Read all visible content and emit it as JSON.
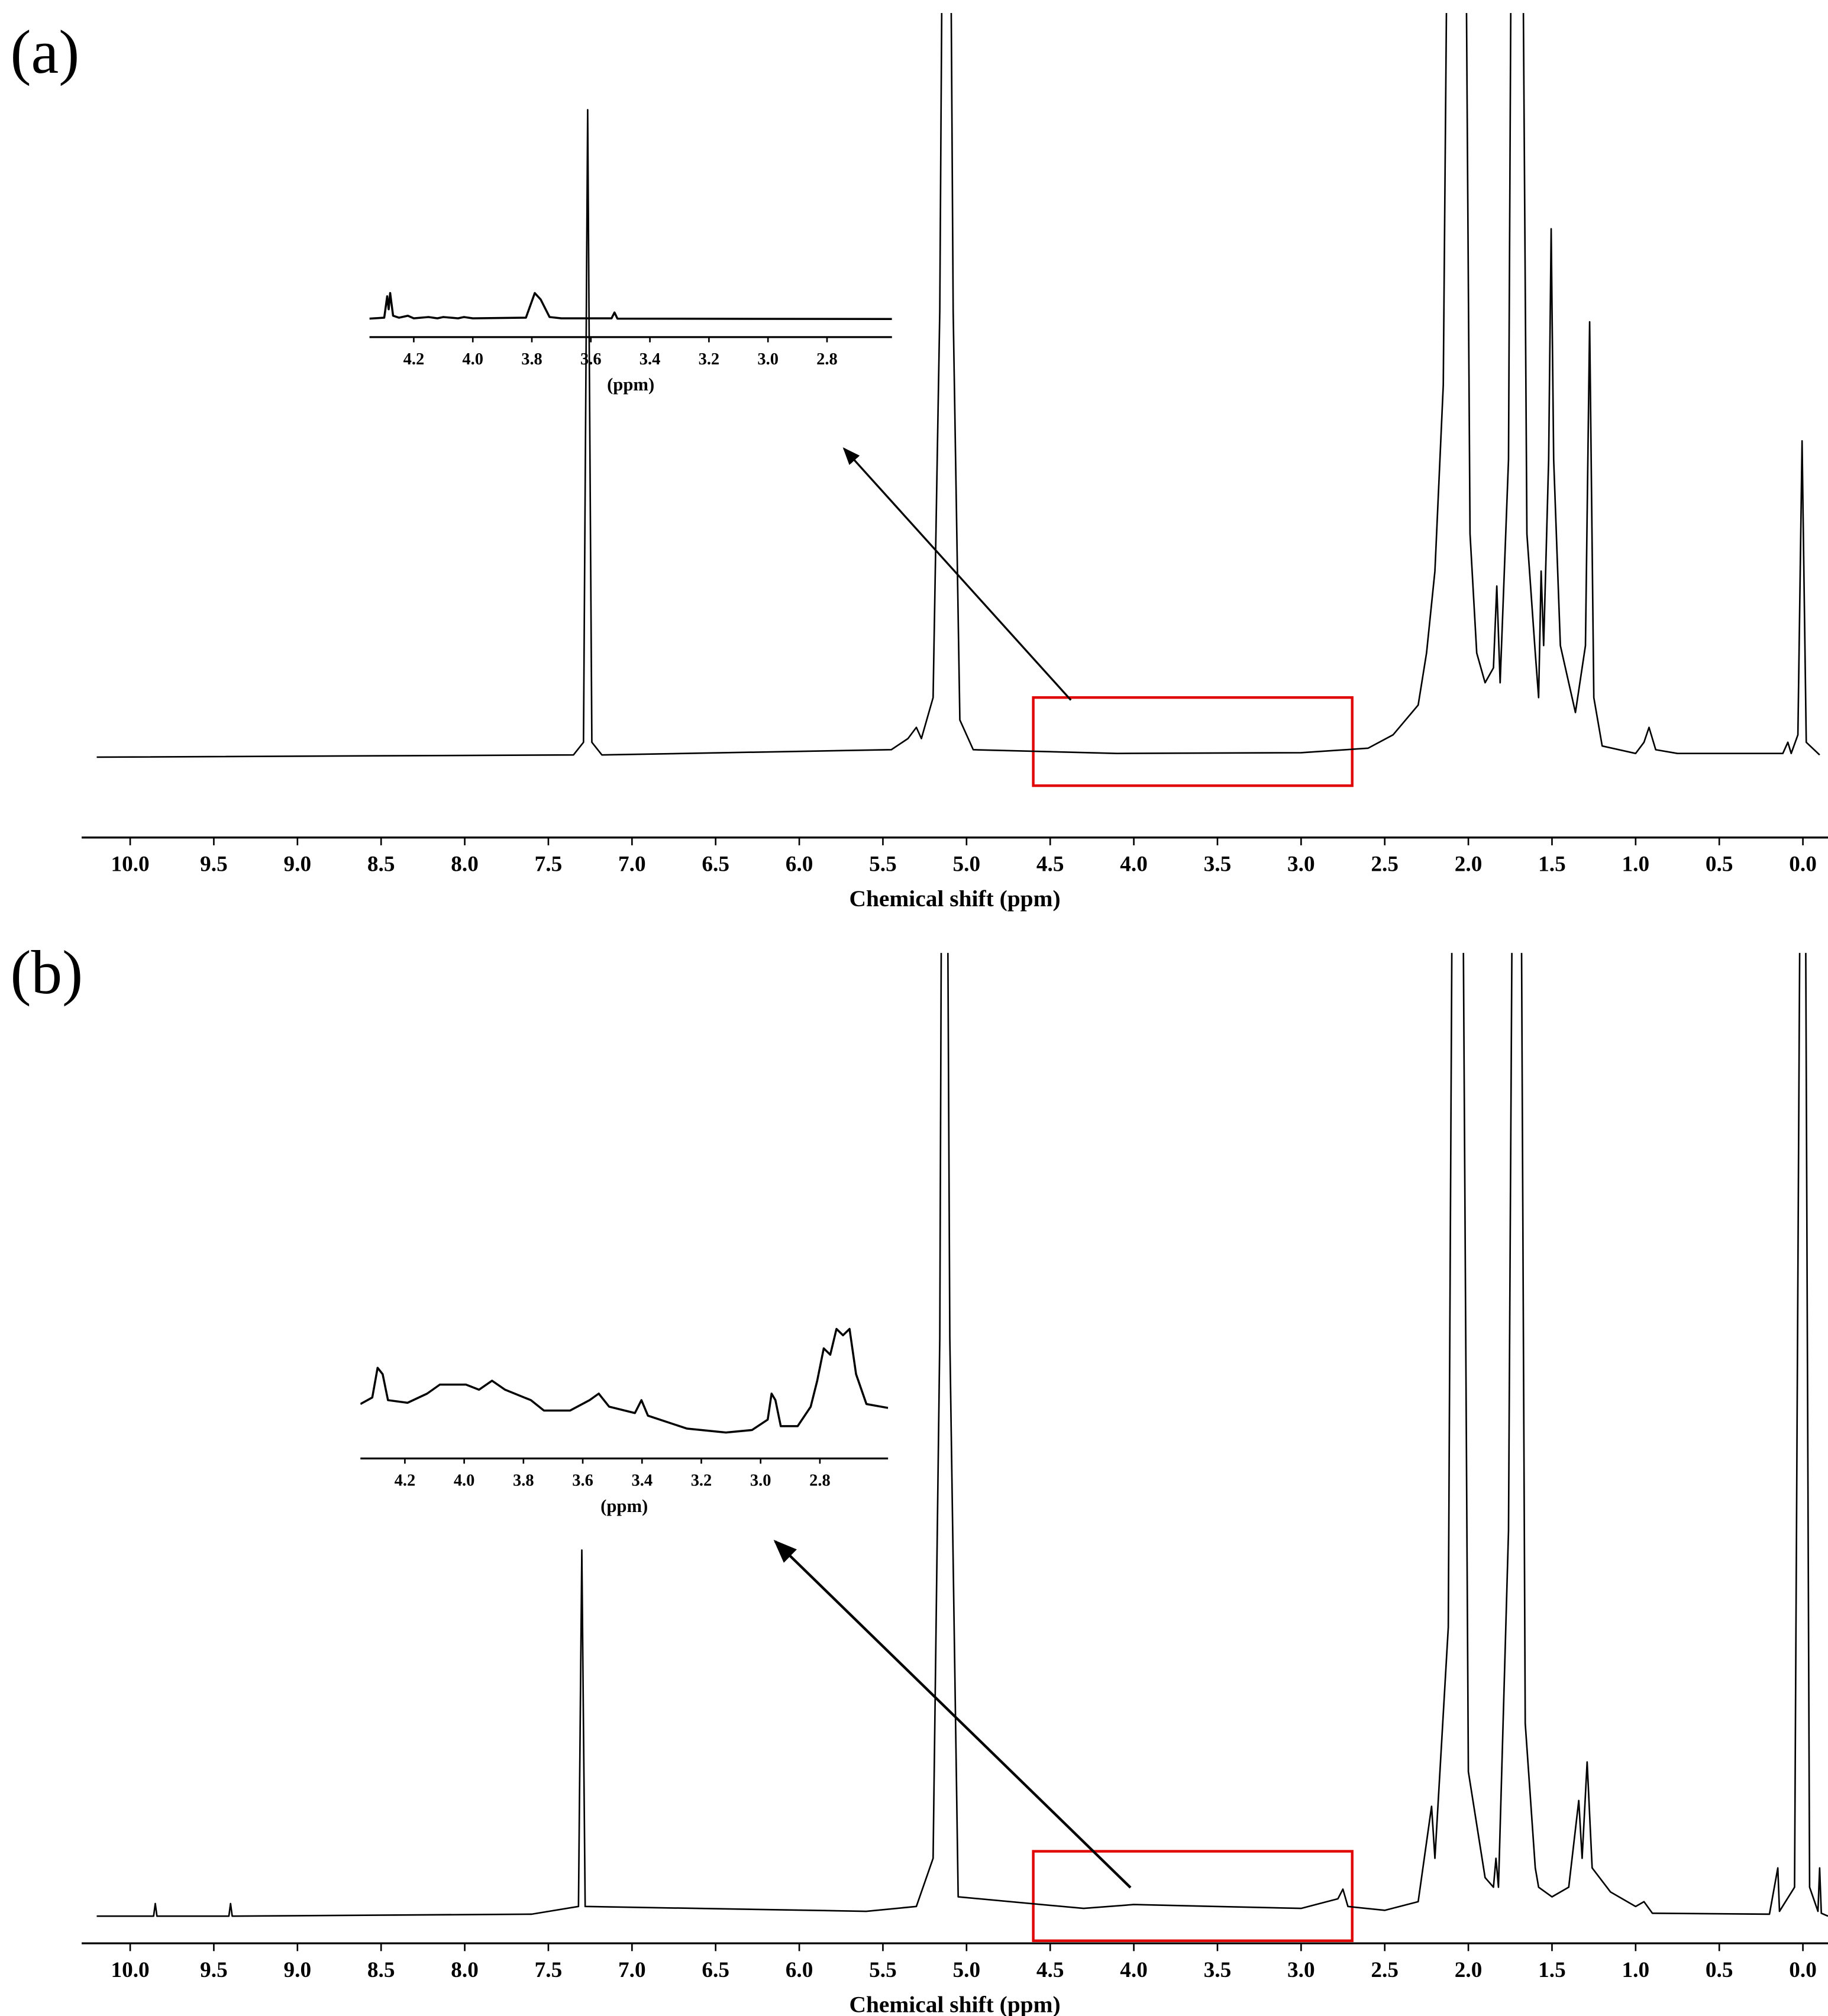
{
  "chart_data": [
    {
      "type": "line",
      "panel_label": "(a)",
      "xlabel": "Chemical shift (ppm)",
      "color": "#000000",
      "xlim": [
        10.29,
        -0.15
      ],
      "ylim": [
        0,
        100
      ],
      "xticks": [
        {
          "value": 10,
          "label": "10.0"
        },
        9.5,
        {
          "value": 9,
          "label": "9.0"
        },
        8.5,
        {
          "value": 8,
          "label": "8.0"
        },
        7.5,
        {
          "value": 7,
          "label": "7.0"
        },
        6.5,
        {
          "value": 6,
          "label": "6.0"
        },
        5.5,
        {
          "value": 5,
          "label": "5.0"
        },
        4.5,
        {
          "value": 4,
          "label": "4.0"
        },
        3.5,
        {
          "value": 3,
          "label": "3.0"
        },
        2.5,
        {
          "value": 2,
          "label": "2.0"
        },
        1.5,
        {
          "value": 1,
          "label": "1.0"
        },
        0.5,
        {
          "value": 0,
          "label": "0.0"
        }
      ],
      "x": [
        10.2,
        7.35,
        7.29,
        7.265,
        7.24,
        7.18,
        5.45,
        5.35,
        5.3,
        5.27,
        5.2,
        5.16,
        5.14,
        5.1,
        5.08,
        5.04,
        5.0,
        4.96,
        4.1,
        3.0,
        2.6,
        2.45,
        2.3,
        2.25,
        2.2,
        2.15,
        2.12,
        2.02,
        1.99,
        1.95,
        1.9,
        1.85,
        1.83,
        1.81,
        1.76,
        1.74,
        1.68,
        1.65,
        1.6,
        1.58,
        1.565,
        1.55,
        1.52,
        1.505,
        1.49,
        1.45,
        1.36,
        1.3,
        1.275,
        1.25,
        1.2,
        1.0,
        0.95,
        0.92,
        0.88,
        0.75,
        0.12,
        0.09,
        0.07,
        0.03,
        0.005,
        -0.02,
        -0.1
      ],
      "values": [
        0,
        0.3,
        2,
        87,
        2,
        0.3,
        1,
        2.5,
        4,
        2.5,
        8,
        60,
        130,
        130,
        60,
        5,
        3,
        1,
        0.5,
        0.6,
        1.2,
        3,
        7,
        14,
        25,
        50,
        130,
        130,
        30,
        14,
        10,
        12,
        23,
        10,
        40,
        130,
        130,
        30,
        14,
        8,
        25,
        15,
        40,
        71,
        40,
        15,
        6,
        15,
        58.5,
        8,
        1.5,
        0.5,
        2,
        4,
        1,
        0.5,
        0.5,
        2,
        0.5,
        3,
        42.5,
        2,
        0.3
      ]
    },
    {
      "type": "line",
      "xlabel": "(ppm)",
      "color": "#000000",
      "xlim": [
        4.35,
        2.58
      ],
      "ylim": [
        0,
        100
      ],
      "xticks": [
        4.2,
        {
          "value": 4,
          "label": "4.0"
        },
        3.8,
        3.6,
        3.4,
        3.2,
        {
          "value": 3,
          "label": "3.0"
        },
        2.8
      ],
      "x": [
        4.35,
        4.3,
        4.29,
        4.285,
        4.28,
        4.27,
        4.25,
        4.22,
        4.2,
        4.15,
        4.12,
        4.1,
        4.05,
        4.03,
        4.0,
        3.82,
        3.79,
        3.77,
        3.74,
        3.7,
        3.53,
        3.52,
        3.51,
        2.58
      ],
      "values": [
        0.5,
        2,
        35,
        15,
        40,
        5,
        2,
        5,
        1,
        3,
        1,
        3,
        1,
        3,
        1,
        2,
        40,
        30,
        3,
        1,
        1,
        10,
        0.5,
        0
      ]
    },
    {
      "type": "line",
      "panel_label": "(b)",
      "xlabel": "Chemical shift (ppm)",
      "color": "#000000",
      "xlim": [
        10.29,
        -0.15
      ],
      "ylim": [
        0,
        100
      ],
      "xticks": [
        {
          "value": 10,
          "label": "10.0"
        },
        9.5,
        {
          "value": 9,
          "label": "9.0"
        },
        8.5,
        {
          "value": 8,
          "label": "8.0"
        },
        7.5,
        {
          "value": 7,
          "label": "7.0"
        },
        6.5,
        {
          "value": 6,
          "label": "6.0"
        },
        5.5,
        {
          "value": 5,
          "label": "5.0"
        },
        4.5,
        {
          "value": 4,
          "label": "4.0"
        },
        3.5,
        {
          "value": 3,
          "label": "3.0"
        },
        2.5,
        {
          "value": 2,
          "label": "2.0"
        },
        1.5,
        {
          "value": 1,
          "label": "1.0"
        },
        0.5,
        {
          "value": 0,
          "label": "0.0"
        }
      ],
      "x": [
        10.2,
        9.86,
        9.85,
        9.84,
        9.41,
        9.4,
        9.39,
        7.6,
        7.32,
        7.3,
        7.28,
        5.6,
        5.3,
        5.2,
        5.16,
        5.145,
        5.12,
        5.1,
        5.05,
        4.3,
        4.0,
        3.0,
        2.78,
        2.75,
        2.72,
        2.5,
        2.3,
        2.22,
        2.2,
        2.12,
        2.09,
        2.04,
        2.0,
        1.9,
        1.85,
        1.835,
        1.82,
        1.76,
        1.73,
        1.69,
        1.66,
        1.6,
        1.58,
        1.5,
        1.4,
        1.34,
        1.32,
        1.29,
        1.26,
        1.15,
        1.0,
        0.95,
        0.9,
        0.2,
        0.15,
        0.14,
        0.05,
        0.01,
        -0.01,
        -0.04,
        -0.09,
        -0.1,
        -0.11,
        -0.15
      ],
      "values": [
        0,
        0,
        1.3,
        0,
        0,
        1.3,
        0,
        0.2,
        1,
        38,
        1,
        0.5,
        1,
        6,
        60,
        130,
        130,
        60,
        2,
        0.8,
        1.2,
        0.8,
        1.8,
        2.8,
        1,
        0.6,
        1.5,
        11.4,
        6,
        30,
        130,
        130,
        15,
        4,
        3,
        6,
        3,
        40,
        130,
        130,
        20,
        5,
        3,
        2,
        3,
        12,
        6,
        16,
        5,
        2.5,
        1,
        1.5,
        0.3,
        0.2,
        5,
        0.5,
        3,
        130,
        130,
        3,
        0.5,
        5,
        0.3,
        0
      ]
    },
    {
      "type": "line",
      "xlabel": "(ppm)",
      "color": "#000000",
      "xlim": [
        4.35,
        2.57
      ],
      "ylim": [
        0,
        100
      ],
      "xticks": [
        4.2,
        {
          "value": 4,
          "label": "4.0"
        },
        3.8,
        3.6,
        3.4,
        3.2,
        {
          "value": 3,
          "label": "3.0"
        },
        2.8
      ],
      "x": [
        4.35,
        4.31,
        4.292,
        4.275,
        4.257,
        4.191,
        4.125,
        4.082,
        3.994,
        3.95,
        3.906,
        3.862,
        3.775,
        3.731,
        3.643,
        3.577,
        3.546,
        3.511,
        3.424,
        3.402,
        3.38,
        3.248,
        3.117,
        3.029,
        2.976,
        2.963,
        2.95,
        2.932,
        2.875,
        2.831,
        2.809,
        2.787,
        2.765,
        2.744,
        2.722,
        2.7,
        2.678,
        2.643,
        2.57
      ],
      "values": [
        22.5,
        26.7,
        45.8,
        41.7,
        25,
        23.3,
        29.2,
        35,
        35,
        31.7,
        37.5,
        31.7,
        25,
        18.3,
        18.3,
        25,
        29.2,
        20.8,
        16.7,
        25,
        15,
        6.7,
        4.2,
        5.8,
        12.5,
        29.2,
        25,
        8.3,
        8.3,
        20.8,
        37.5,
        58.3,
        54.2,
        70.8,
        66.7,
        70.8,
        41.7,
        22.5,
        20
      ]
    }
  ]
}
